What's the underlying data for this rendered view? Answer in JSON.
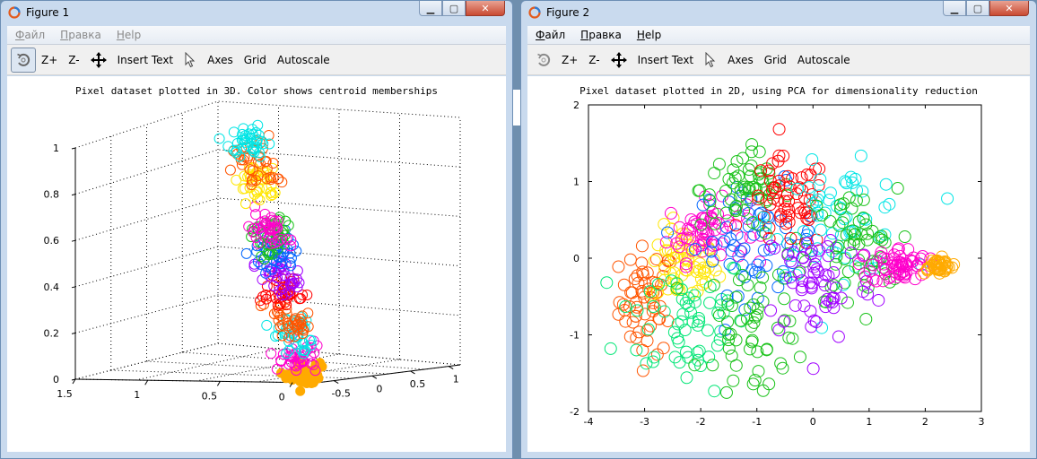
{
  "windows": [
    {
      "title": "Figure 1",
      "menu": [
        {
          "label": "Файл",
          "underline": "Ф",
          "rest": "айл",
          "enabled": false
        },
        {
          "label": "Правка",
          "underline": "П",
          "rest": "равка",
          "enabled": false
        },
        {
          "label": "Help",
          "underline": "H",
          "rest": "elp",
          "enabled": false
        }
      ],
      "toolbar": {
        "rotate_icon": "rotate-icon",
        "zoom_in": "Z+",
        "zoom_out": "Z-",
        "pan_icon": "pan-icon",
        "insert_text": "Insert Text",
        "select_icon": "pointer-icon",
        "axes": "Axes",
        "grid": "Grid",
        "autoscale": "Autoscale"
      }
    },
    {
      "title": "Figure 2",
      "menu": [
        {
          "label": "Файл",
          "underline": "Ф",
          "rest": "айл",
          "enabled": true
        },
        {
          "label": "Правка",
          "underline": "П",
          "rest": "равка",
          "enabled": true
        },
        {
          "label": "Help",
          "underline": "H",
          "rest": "elp",
          "enabled": true
        }
      ],
      "toolbar": {
        "rotate_icon": "rotate-icon",
        "zoom_in": "Z+",
        "zoom_out": "Z-",
        "pan_icon": "pan-icon",
        "insert_text": "Insert Text",
        "select_icon": "pointer-icon",
        "axes": "Axes",
        "grid": "Grid",
        "autoscale": "Autoscale"
      }
    }
  ],
  "colors": {
    "clusters": [
      "#ff5500",
      "#ffe600",
      "#00e676",
      "#ff00cc",
      "#0066ff",
      "#ff0000",
      "#00e5e5",
      "#19c219",
      "#a000ff",
      "#ffaa00"
    ]
  },
  "chart_data": [
    {
      "type": "scatter",
      "projection": "3d",
      "title": "Pixel dataset plotted in 3D. Color shows centroid memberships",
      "zticks": [
        "0",
        "0.2",
        "0.4",
        "0.6",
        "0.8",
        "1"
      ],
      "xticks": [
        "1.5",
        "1",
        "0.5",
        "0"
      ],
      "yticks": [
        "-0.5",
        "0",
        "0.5",
        "1"
      ],
      "zlim": [
        0,
        1
      ],
      "grid": true,
      "series": [
        {
          "color": "#ffaa00",
          "z_range": [
            0.0,
            0.06
          ]
        },
        {
          "color": "#ff00cc",
          "z_range": [
            0.05,
            0.14
          ]
        },
        {
          "color": "#00e5e5",
          "z_range": [
            0.12,
            0.26
          ]
        },
        {
          "color": "#ff5500",
          "z_range": [
            0.2,
            0.3
          ]
        },
        {
          "color": "#ff0000",
          "z_range": [
            0.34,
            0.44
          ]
        },
        {
          "color": "#a000ff",
          "z_range": [
            0.38,
            0.52
          ]
        },
        {
          "color": "#0066ff",
          "z_range": [
            0.5,
            0.62
          ]
        },
        {
          "color": "#19c219",
          "z_range": [
            0.54,
            0.68
          ]
        },
        {
          "color": "#ff00cc",
          "z_range": [
            0.6,
            0.7
          ]
        },
        {
          "color": "#ffe600",
          "z_range": [
            0.78,
            0.9
          ]
        },
        {
          "color": "#ff5500",
          "z_range": [
            0.86,
            1.02
          ]
        },
        {
          "color": "#00e5e5",
          "z_range": [
            0.98,
            1.08
          ]
        }
      ]
    },
    {
      "type": "scatter",
      "title": "Pixel dataset plotted in 2D, using PCA for dimensionality reduction",
      "xlim": [
        -4,
        3
      ],
      "ylim": [
        -2,
        2
      ],
      "xticks": [
        -4,
        -3,
        -2,
        -1,
        0,
        1,
        2,
        3
      ],
      "yticks": [
        -2,
        -1,
        0,
        1,
        2
      ],
      "grid": false,
      "series": [
        {
          "color": "#ff5500",
          "cx": -2.95,
          "cy": -0.55,
          "sx": 0.25,
          "sy": 0.35
        },
        {
          "color": "#ffe600",
          "cx": -2.3,
          "cy": -0.1,
          "sx": 0.3,
          "sy": 0.25
        },
        {
          "color": "#00e676",
          "cx": -2.3,
          "cy": -0.8,
          "sx": 0.6,
          "sy": 0.45
        },
        {
          "color": "#ff00cc",
          "cx": -1.9,
          "cy": 0.35,
          "sx": 0.35,
          "sy": 0.2
        },
        {
          "color": "#0066ff",
          "cx": -1.0,
          "cy": 0.25,
          "sx": 0.55,
          "sy": 0.35
        },
        {
          "color": "#19c219",
          "cx": -1.2,
          "cy": 0.9,
          "sx": 0.4,
          "sy": 0.25
        },
        {
          "color": "#ff0000",
          "cx": -0.45,
          "cy": 0.7,
          "sx": 0.35,
          "sy": 0.3
        },
        {
          "color": "#19c219",
          "cx": -1.0,
          "cy": -0.9,
          "sx": 0.5,
          "sy": 0.5
        },
        {
          "color": "#00e5e5",
          "cx": 0.5,
          "cy": 0.5,
          "sx": 0.6,
          "sy": 0.35
        },
        {
          "color": "#19c219",
          "cx": 0.7,
          "cy": 0.1,
          "sx": 0.4,
          "sy": 0.4
        },
        {
          "color": "#a000ff",
          "cx": 0.1,
          "cy": -0.3,
          "sx": 0.5,
          "sy": 0.4
        },
        {
          "color": "#ff00cc",
          "cx": 1.55,
          "cy": -0.1,
          "sx": 0.25,
          "sy": 0.12
        },
        {
          "color": "#ffaa00",
          "cx": 2.2,
          "cy": -0.1,
          "sx": 0.15,
          "sy": 0.05
        }
      ]
    }
  ]
}
